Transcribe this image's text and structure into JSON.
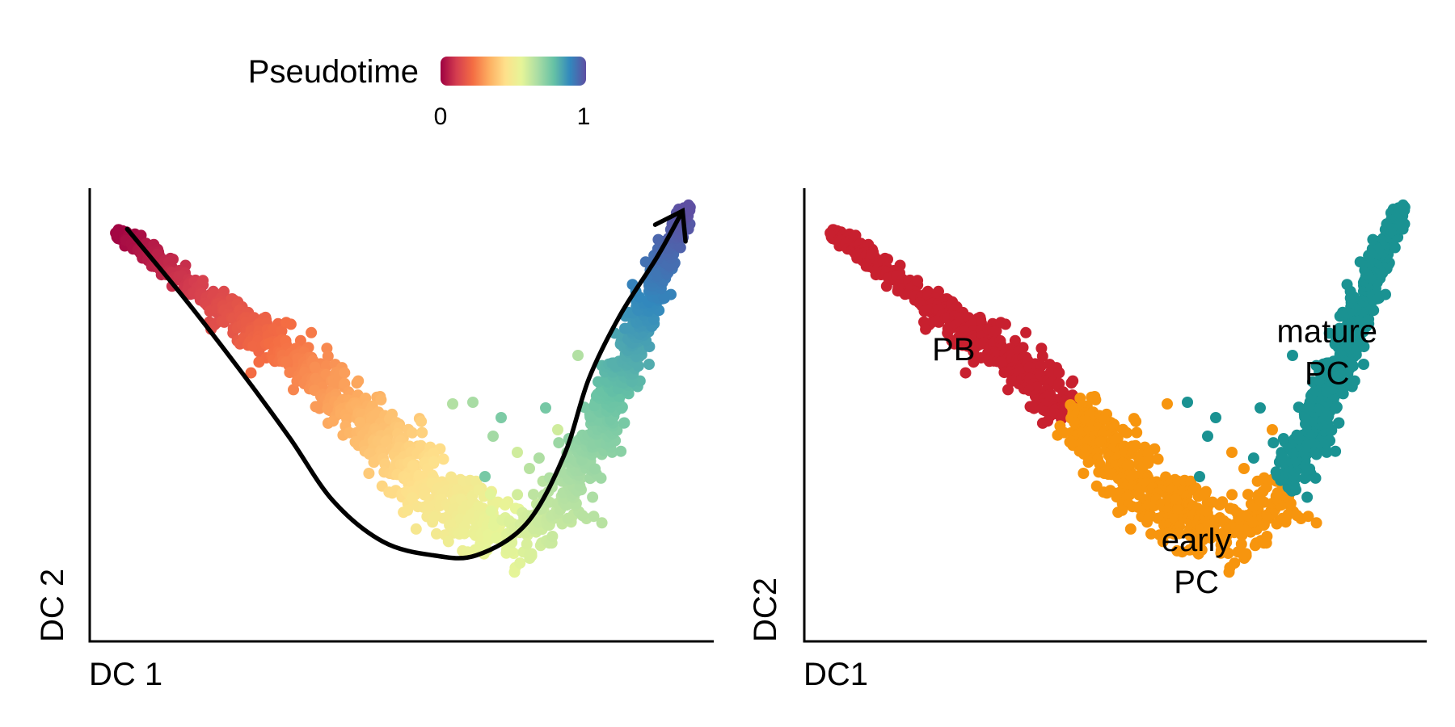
{
  "legend": {
    "title": "Pseudotime",
    "min_label": "0",
    "max_label": "1",
    "colors": [
      "#9e0142",
      "#d53e4f",
      "#f46d43",
      "#fdae61",
      "#fee08b",
      "#e6f598",
      "#abdda4",
      "#66c2a5",
      "#3288bd",
      "#5e4fa2"
    ]
  },
  "chart_data": [
    {
      "type": "scatter",
      "title": "",
      "xlabel": "DC 1",
      "ylabel": "DC 2",
      "color_by": "Pseudotime",
      "color_range": [
        0,
        1
      ],
      "xlim": [
        0,
        1
      ],
      "ylim": [
        0,
        1
      ],
      "grid": false,
      "trajectory": {
        "type": "line",
        "arrow": "end",
        "points": [
          [
            0.06,
            0.91
          ],
          [
            0.15,
            0.76
          ],
          [
            0.24,
            0.6
          ],
          [
            0.32,
            0.45
          ],
          [
            0.39,
            0.31
          ],
          [
            0.47,
            0.22
          ],
          [
            0.55,
            0.19
          ],
          [
            0.62,
            0.19
          ],
          [
            0.7,
            0.26
          ],
          [
            0.76,
            0.41
          ],
          [
            0.8,
            0.58
          ],
          [
            0.85,
            0.72
          ],
          [
            0.91,
            0.85
          ],
          [
            0.95,
            0.95
          ]
        ]
      },
      "colors": [
        "#9e0142",
        "#d53e4f",
        "#f46d43",
        "#fdae61",
        "#fee08b",
        "#e6f598",
        "#abdda4",
        "#66c2a5",
        "#3288bd",
        "#5e4fa2"
      ]
    },
    {
      "type": "scatter",
      "title": "",
      "xlabel": "DC1",
      "ylabel": "DC2",
      "xlim": [
        0,
        1
      ],
      "ylim": [
        0,
        1
      ],
      "grid": false,
      "series": [
        {
          "name": "PB",
          "label": "PB",
          "color": "#c8202f",
          "label_position": [
            0.24,
            0.62
          ]
        },
        {
          "name": "early PC",
          "label": "early\nPC",
          "color": "#f7950e",
          "label_position": [
            0.63,
            0.2
          ]
        },
        {
          "name": "mature PC",
          "label": "mature\nPC",
          "color": "#1a9292",
          "label_position": [
            0.84,
            0.66
          ]
        }
      ]
    }
  ]
}
